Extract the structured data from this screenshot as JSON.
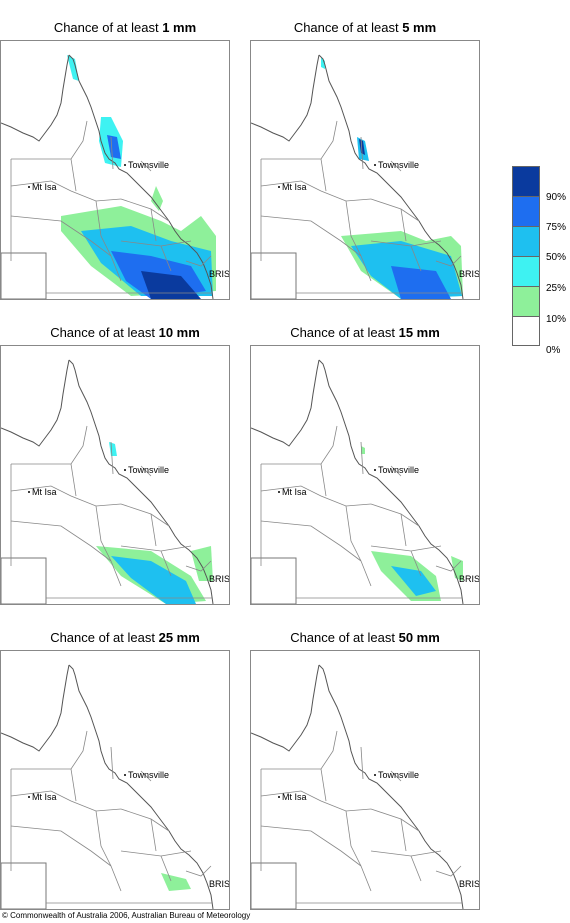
{
  "panels": [
    {
      "prefix": "Chance of at least ",
      "amount": "1 mm",
      "level": 0
    },
    {
      "prefix": "Chance of at least ",
      "amount": "5 mm",
      "level": 1
    },
    {
      "prefix": "Chance of at least ",
      "amount": "10 mm",
      "level": 2
    },
    {
      "prefix": "Chance of at least ",
      "amount": "15 mm",
      "level": 3
    },
    {
      "prefix": "Chance of at least ",
      "amount": "25 mm",
      "level": 4
    },
    {
      "prefix": "Chance of at least ",
      "amount": "50 mm",
      "level": 5
    }
  ],
  "places": {
    "townsville": "Townsville",
    "mt_isa": "Mt Isa",
    "bris": "BRIS"
  },
  "legend": {
    "labels": [
      "90%",
      "75%",
      "50%",
      "25%",
      "10%",
      "0%"
    ],
    "colors": [
      "#0a3a9e",
      "#1e6ef0",
      "#1ec0f0",
      "#3ef2f2",
      "#8ef09a",
      "#ffffff"
    ]
  },
  "copyright": "© Commonwealth of Australia 2006, Australian Bureau of Meteorology"
}
